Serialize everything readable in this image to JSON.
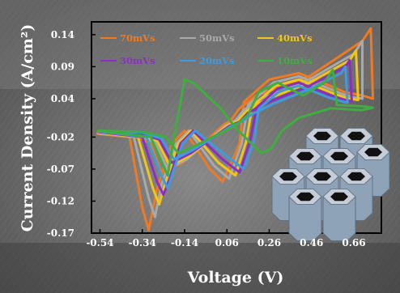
{
  "chart_data": {
    "type": "line",
    "title": "",
    "xlabel": "Voltage (V)",
    "ylabel": "Current Density (A/cm²)",
    "xlim": [
      -0.58,
      0.79
    ],
    "ylim": [
      -0.17,
      0.16
    ],
    "x_ticks": [
      "-0.54",
      "-0.34",
      "-0.14",
      "0.06",
      "0.26",
      "0.46",
      "0.66"
    ],
    "y_ticks": [
      "0.14",
      "0.09",
      "0.04",
      "-0.02",
      "-0.07",
      "-0.12",
      "-0.17"
    ],
    "legend_position": "top",
    "grid": false,
    "series": [
      {
        "name": "70mVs",
        "color": "#f07a22",
        "x": [
          -0.55,
          -0.38,
          -0.3,
          -0.25,
          -0.15,
          0.04,
          0.08,
          0.12,
          0.2,
          0.45,
          0.7,
          0.74,
          0.75,
          0.7,
          0.62,
          0.4,
          0.26,
          0.14,
          0.12,
          0.04,
          -0.02,
          -0.14,
          -0.2,
          -0.27,
          -0.31,
          -0.34,
          -0.4,
          -0.55
        ],
        "y": [
          -0.015,
          -0.017,
          -0.03,
          -0.075,
          -0.06,
          -0.002,
          0.007,
          0.025,
          0.045,
          0.075,
          0.13,
          0.15,
          0.04,
          0.045,
          0.05,
          0.08,
          0.07,
          0.035,
          -0.03,
          -0.09,
          -0.07,
          -0.01,
          -0.03,
          -0.1,
          -0.165,
          -0.13,
          -0.02,
          -0.015
        ]
      },
      {
        "name": "50mVs",
        "color": "#a9a9a9",
        "x": [
          -0.55,
          -0.37,
          -0.28,
          -0.22,
          -0.13,
          0.05,
          0.1,
          0.14,
          0.22,
          0.45,
          0.66,
          0.7,
          0.7,
          0.66,
          0.6,
          0.4,
          0.28,
          0.16,
          0.13,
          0.07,
          0.0,
          -0.12,
          -0.18,
          -0.25,
          -0.28,
          -0.31,
          -0.38,
          -0.55
        ],
        "y": [
          -0.014,
          -0.016,
          -0.028,
          -0.07,
          -0.055,
          -0.003,
          0.006,
          0.022,
          0.04,
          0.07,
          0.11,
          0.13,
          0.04,
          0.042,
          0.048,
          0.075,
          0.065,
          0.03,
          -0.03,
          -0.085,
          -0.065,
          -0.01,
          -0.03,
          -0.095,
          -0.145,
          -0.115,
          -0.02,
          -0.014
        ]
      },
      {
        "name": "40mVs",
        "color": "#f3c615",
        "x": [
          -0.55,
          -0.36,
          -0.27,
          -0.21,
          -0.12,
          0.06,
          0.11,
          0.15,
          0.24,
          0.45,
          0.64,
          0.67,
          0.68,
          0.64,
          0.58,
          0.4,
          0.29,
          0.18,
          0.15,
          0.1,
          0.02,
          -0.11,
          -0.17,
          -0.23,
          -0.26,
          -0.29,
          -0.36,
          -0.55
        ],
        "y": [
          -0.013,
          -0.015,
          -0.026,
          -0.065,
          -0.05,
          -0.003,
          0.005,
          0.02,
          0.038,
          0.065,
          0.1,
          0.115,
          0.038,
          0.04,
          0.046,
          0.07,
          0.06,
          0.028,
          -0.028,
          -0.08,
          -0.06,
          -0.01,
          -0.03,
          -0.09,
          -0.125,
          -0.1,
          -0.02,
          -0.013
        ]
      },
      {
        "name": "30mVs",
        "color": "#8b2fc2",
        "x": [
          -0.55,
          -0.35,
          -0.26,
          -0.2,
          -0.11,
          0.07,
          0.12,
          0.16,
          0.26,
          0.45,
          0.62,
          0.64,
          0.65,
          0.62,
          0.56,
          0.4,
          0.3,
          0.2,
          0.17,
          0.12,
          0.04,
          -0.1,
          -0.16,
          -0.21,
          -0.24,
          -0.27,
          -0.34,
          -0.55
        ],
        "y": [
          -0.012,
          -0.014,
          -0.024,
          -0.06,
          -0.045,
          -0.003,
          0.004,
          0.018,
          0.035,
          0.06,
          0.09,
          0.1,
          0.036,
          0.038,
          0.044,
          0.065,
          0.056,
          0.026,
          -0.026,
          -0.075,
          -0.055,
          -0.01,
          -0.03,
          -0.085,
          -0.11,
          -0.09,
          -0.02,
          -0.012
        ]
      },
      {
        "name": "20mVs",
        "color": "#3f9bde",
        "x": [
          -0.55,
          -0.34,
          -0.25,
          -0.19,
          -0.1,
          0.08,
          0.13,
          0.18,
          0.28,
          0.45,
          0.6,
          0.62,
          0.63,
          0.6,
          0.54,
          0.4,
          0.31,
          0.21,
          0.19,
          0.14,
          0.06,
          -0.09,
          -0.15,
          -0.2,
          -0.22,
          -0.25,
          -0.32,
          -0.55
        ],
        "y": [
          -0.011,
          -0.013,
          -0.022,
          -0.055,
          -0.04,
          -0.003,
          0.004,
          0.016,
          0.032,
          0.055,
          0.08,
          0.09,
          0.034,
          0.036,
          0.042,
          0.06,
          0.052,
          0.024,
          -0.024,
          -0.07,
          -0.05,
          -0.01,
          -0.03,
          -0.08,
          -0.1,
          -0.08,
          -0.02,
          -0.011
        ]
      },
      {
        "name": "10mVs",
        "color": "#3fae3f",
        "x": [
          -0.55,
          -0.33,
          -0.23,
          -0.17,
          -0.08,
          0.1,
          0.16,
          0.21,
          0.3,
          0.42,
          0.52,
          0.55,
          0.56,
          0.58,
          0.7,
          0.75,
          0.7,
          0.55,
          0.5,
          0.4,
          0.32,
          0.27,
          0.22,
          0.1,
          0.03,
          -0.1,
          -0.14,
          -0.19,
          -0.22,
          -0.3,
          -0.55
        ],
        "y": [
          -0.01,
          -0.012,
          -0.02,
          -0.045,
          -0.032,
          -0.002,
          0.015,
          0.05,
          0.065,
          0.045,
          0.065,
          0.08,
          0.085,
          0.03,
          0.028,
          0.026,
          0.022,
          0.025,
          0.02,
          0.01,
          -0.01,
          -0.038,
          -0.045,
          -0.005,
          0.025,
          0.065,
          0.07,
          -0.02,
          -0.08,
          -0.02,
          -0.01
        ]
      }
    ]
  }
}
